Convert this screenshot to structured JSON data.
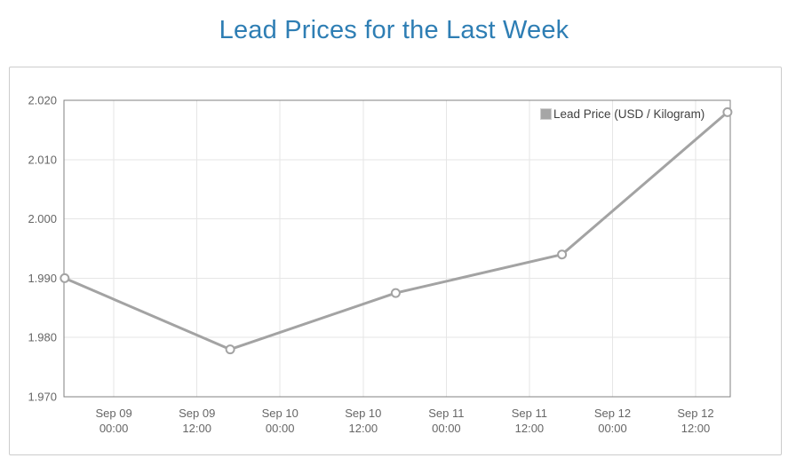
{
  "title": {
    "text": "Lead Prices for the Last Week",
    "color": "#2e7eb4"
  },
  "legend": {
    "label": "Lead Price (USD / Kilogram)",
    "swatch_color": "#a6a6a6",
    "text_color": "#3f3f3f"
  },
  "chart_data": {
    "type": "line",
    "title": "Lead Prices for the Last Week",
    "series": [
      {
        "name": "Lead Price (USD / Kilogram)",
        "x": [
          "Sep 08 17:00",
          "Sep 09 17:00",
          "Sep 10 17:00",
          "Sep 11 17:00",
          "Sep 12 17:00"
        ],
        "x_hours": [
          -7.1,
          16.8,
          40.7,
          64.7,
          88.6
        ],
        "values": [
          1.99,
          1.978,
          1.9875,
          1.994,
          2.018
        ]
      }
    ],
    "xlabel": "",
    "ylabel": "",
    "ylim": [
      1.97,
      2.02
    ],
    "y_ticks": [
      1.97,
      1.98,
      1.99,
      2.0,
      2.01,
      2.02
    ],
    "y_tick_labels": [
      "1.970",
      "1.980",
      "1.990",
      "2.000",
      "2.010",
      "2.020"
    ],
    "xlim_hours": [
      -7.2,
      89.0
    ],
    "x_ticks_hours": [
      0,
      12,
      24,
      36,
      48,
      60,
      72,
      84
    ],
    "x_tick_labels": [
      [
        "Sep 09",
        "00:00"
      ],
      [
        "Sep 09",
        "12:00"
      ],
      [
        "Sep 10",
        "00:00"
      ],
      [
        "Sep 10",
        "12:00"
      ],
      [
        "Sep 11",
        "00:00"
      ],
      [
        "Sep 11",
        "12:00"
      ],
      [
        "Sep 12",
        "00:00"
      ],
      [
        "Sep 12",
        "12:00"
      ]
    ],
    "grid": true,
    "legend_position": "top-right",
    "colors": {
      "line": "#a3a3a3",
      "marker_fill": "#ffffff",
      "marker_stroke": "#a3a3a3",
      "grid": "#e6e6e6",
      "plot_border": "#808080",
      "axis_label": "#666666"
    }
  }
}
